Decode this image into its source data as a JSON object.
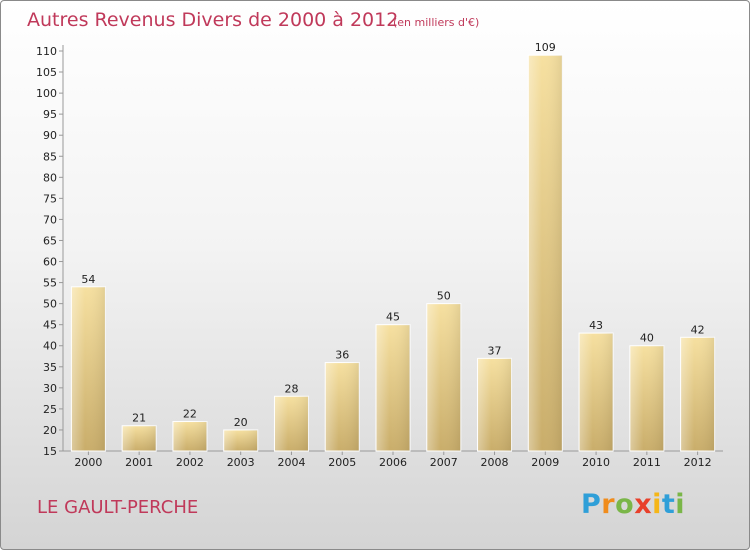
{
  "title": "Autres Revenus Divers de 2000 à 2012",
  "subtitle": "(en milliers d'€)",
  "location": "LE GAULT-PERCHE",
  "logo": {
    "letters": [
      "P",
      "r",
      "o",
      "x",
      "i",
      "t",
      "i"
    ],
    "colors": [
      "#2f9fd8",
      "#f08c1c",
      "#7ab648",
      "#e8402b",
      "#f5b617",
      "#2f9fd8",
      "#7ab648"
    ]
  },
  "chart_data": {
    "type": "bar",
    "categories": [
      "2000",
      "2001",
      "2002",
      "2003",
      "2004",
      "2005",
      "2006",
      "2007",
      "2008",
      "2009",
      "2010",
      "2011",
      "2012"
    ],
    "values": [
      54,
      21,
      22,
      20,
      28,
      36,
      45,
      50,
      37,
      109,
      43,
      40,
      42
    ],
    "title": "Autres Revenus Divers de 2000 à 2012",
    "subtitle": "(en milliers d'€)",
    "ylim": [
      15,
      110
    ],
    "yticks": [
      15,
      20,
      25,
      30,
      35,
      40,
      45,
      50,
      55,
      60,
      65,
      70,
      75,
      80,
      85,
      90,
      95,
      100,
      105,
      110
    ],
    "grid": false,
    "bar_color": "#e2c77e"
  }
}
